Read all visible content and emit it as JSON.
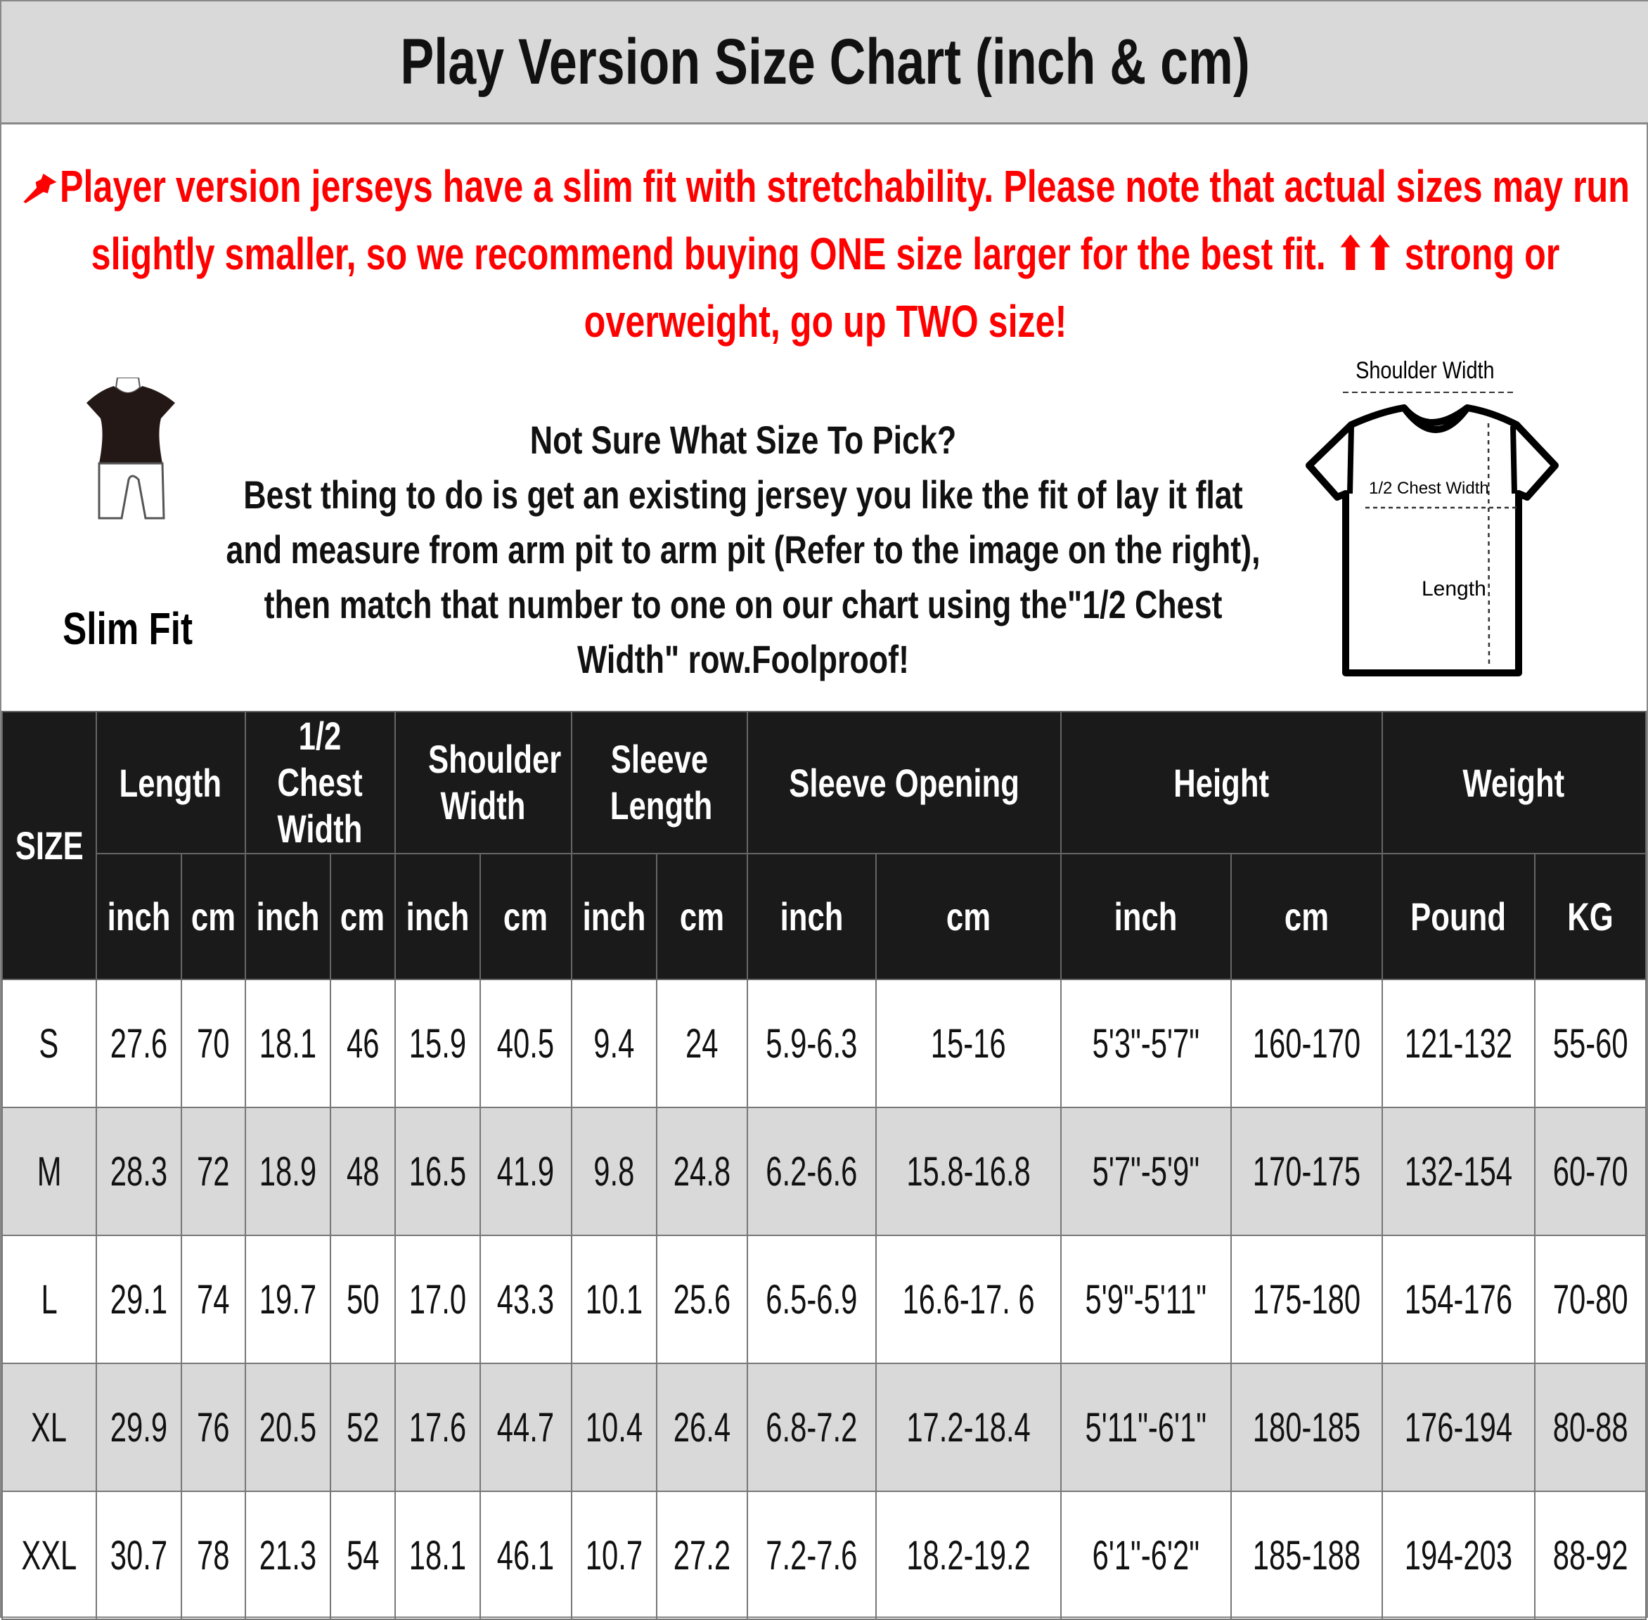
{
  "title": "Play Version Size Chart (inch & cm)",
  "notice": {
    "icon": "pushpin-icon",
    "color": "#ff0000",
    "text": "Player version jerseys have a slim fit with stretchability. Please note that actual sizes may run slightly smaller, so we recommend buying ONE size larger for the best fit. ⬆⬆ strong or overweight, go up TWO size!"
  },
  "fit": {
    "icon": "slim-fit-mannequin-icon",
    "label": "Slim Fit"
  },
  "advice": {
    "heading": "Not Sure What Size To Pick?",
    "body": "Best thing to do is get an existing jersey you like the fit of lay it flat and measure from arm pit to arm pit (Refer to the image on the right), then match that number to one on our chart using the\"1/2 Chest Width\" row.Foolproof!"
  },
  "diagram": {
    "icon": "tshirt-measurement-icon",
    "shoulder": "Shoulder Width",
    "chest": "1/2 Chest Width",
    "length": "Length"
  },
  "table": {
    "size_header": "SIZE",
    "groups": [
      "Length",
      "1/2 Chest Width",
      "Shoulder Width",
      "Sleeve Length",
      "Sleeve Opening",
      "Height",
      "Weight"
    ],
    "units": [
      "inch",
      "cm",
      "inch",
      "cm",
      "inch",
      "cm",
      "inch",
      "cm",
      "inch",
      "cm",
      "inch",
      "cm",
      "Pound",
      "KG"
    ],
    "rows": [
      [
        "S",
        "27.6",
        "70",
        "18.1",
        "46",
        "15.9",
        "40.5",
        "9.4",
        "24",
        "5.9-6.3",
        "15-16",
        "5'3\"-5'7\"",
        "160-170",
        "121-132",
        "55-60"
      ],
      [
        "M",
        "28.3",
        "72",
        "18.9",
        "48",
        "16.5",
        "41.9",
        "9.8",
        "24.8",
        "6.2-6.6",
        "15.8-16.8",
        "5'7\"-5'9\"",
        "170-175",
        "132-154",
        "60-70"
      ],
      [
        "L",
        "29.1",
        "74",
        "19.7",
        "50",
        "17.0",
        "43.3",
        "10.1",
        "25.6",
        "6.5-6.9",
        "16.6-17. 6",
        "5'9\"-5'11\"",
        "175-180",
        "154-176",
        "70-80"
      ],
      [
        "XL",
        "29.9",
        "76",
        "20.5",
        "52",
        "17.6",
        "44.7",
        "10.4",
        "26.4",
        "6.8-7.2",
        "17.2-18.4",
        "5'11\"-6'1\"",
        "180-185",
        "176-194",
        "80-88"
      ],
      [
        "XXL",
        "30.7",
        "78",
        "21.3",
        "54",
        "18.1",
        "46.1",
        "10.7",
        "27.2",
        "7.2-7.6",
        "18.2-19.2",
        "6'1\"-6'2\"",
        "185-188",
        "194-203",
        "88-92"
      ]
    ]
  }
}
